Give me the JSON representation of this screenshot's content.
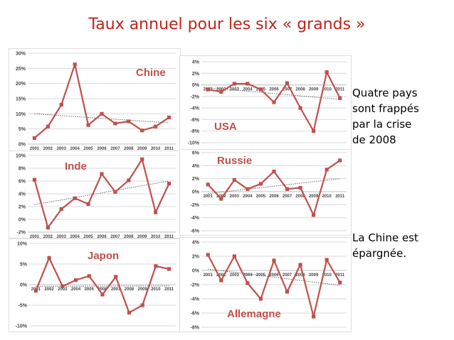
{
  "title": "Taux annuel pour les six « grands »",
  "notes": {
    "top": [
      "Quatre pays",
      "sont frappés",
      "par la crise",
      "de 2008"
    ],
    "bottom": [
      "La Chine est",
      "épargnée."
    ]
  },
  "colors": {
    "title": "#c0241c",
    "series": "#c0504d",
    "label": "#c0504d",
    "grid": "#d9d9d9",
    "trend": "#555555"
  },
  "chart_data": [
    {
      "type": "line",
      "title": "Chine",
      "x": [
        "2001",
        "2002",
        "2003",
        "2004",
        "2005",
        "2006",
        "2007",
        "2008",
        "2009",
        "2010",
        "2011"
      ],
      "values": [
        2,
        5.8,
        13,
        26.3,
        6.3,
        10,
        6.8,
        7.5,
        4.5,
        5.8,
        8.8
      ],
      "ylim": [
        0,
        30
      ],
      "yticks": [
        0,
        5,
        10,
        15,
        20,
        25,
        30
      ],
      "tick_suffix": "%",
      "trend": [
        10,
        7
      ]
    },
    {
      "type": "line",
      "title": "USA",
      "x": [
        "2001",
        "2002",
        "2003",
        "2004",
        "2005",
        "2006",
        "2007",
        "2008",
        "2009",
        "2010",
        "2011"
      ],
      "values": [
        -0.8,
        -1.2,
        0.2,
        0.2,
        -0.8,
        -3,
        0.3,
        -4,
        -8,
        2.2,
        -2.3
      ],
      "ylim": [
        -10,
        4
      ],
      "yticks": [
        4,
        2,
        0,
        -2,
        -4,
        -6,
        -8,
        -10
      ],
      "tick_suffix": "%",
      "trend": [
        -0.5,
        -2.5
      ]
    },
    {
      "type": "line",
      "title": "Inde",
      "x": [
        "2001",
        "2002",
        "2003",
        "2004",
        "2005",
        "2006",
        "2007",
        "2008",
        "2009",
        "2010",
        "2011"
      ],
      "values": [
        6.2,
        -1.3,
        1.6,
        3.3,
        2.4,
        7.1,
        4.3,
        6.1,
        9.4,
        1.1,
        5.6
      ],
      "ylim": [
        -2,
        10
      ],
      "yticks": [
        -2,
        0,
        2,
        4,
        6,
        8,
        10
      ],
      "tick_suffix": "%",
      "trend": [
        2.3,
        6
      ]
    },
    {
      "type": "line",
      "title": "Russie",
      "x": [
        "2001",
        "2002",
        "2003",
        "2004",
        "2005",
        "2006",
        "2007",
        "2008",
        "2009",
        "2010",
        "2011"
      ],
      "values": [
        1.1,
        -1.1,
        1.8,
        0.4,
        1.2,
        3.1,
        0.4,
        0.6,
        -3.6,
        3.4,
        4.8
      ],
      "ylim": [
        -6,
        6
      ],
      "yticks": [
        6,
        4,
        2,
        0,
        -2,
        -4,
        -6
      ],
      "tick_suffix": "%",
      "trend": [
        -0.3,
        2
      ]
    },
    {
      "type": "line",
      "title": "Japon",
      "x": [
        "2001",
        "2002",
        "2003",
        "2004",
        "2005",
        "2006",
        "2007",
        "2008",
        "2009",
        "2010",
        "2011"
      ],
      "values": [
        -1.5,
        6.5,
        -0.4,
        1.1,
        2.1,
        -2.4,
        1.9,
        -6.8,
        -5,
        4.5,
        3.8
      ],
      "ylim": [
        -10,
        10
      ],
      "yticks": [
        10,
        5,
        0,
        -5,
        -10
      ],
      "tick_suffix": "%",
      "trend": [
        -0.4,
        -0.3
      ]
    },
    {
      "type": "line",
      "title": "Allemagne",
      "x": [
        "2001",
        "2002",
        "2003",
        "2004",
        "2005",
        "2006",
        "2007",
        "2008",
        "2009",
        "2010",
        "2011"
      ],
      "values": [
        2.2,
        -1.4,
        2,
        -1.8,
        -4,
        1.4,
        -3,
        0.8,
        -6.5,
        1.5,
        -1.7
      ],
      "ylim": [
        -8,
        4
      ],
      "yticks": [
        4,
        2,
        0,
        -2,
        -4,
        -6,
        -8
      ],
      "tick_suffix": "%",
      "trend": [
        0.2,
        -2.1
      ]
    }
  ]
}
